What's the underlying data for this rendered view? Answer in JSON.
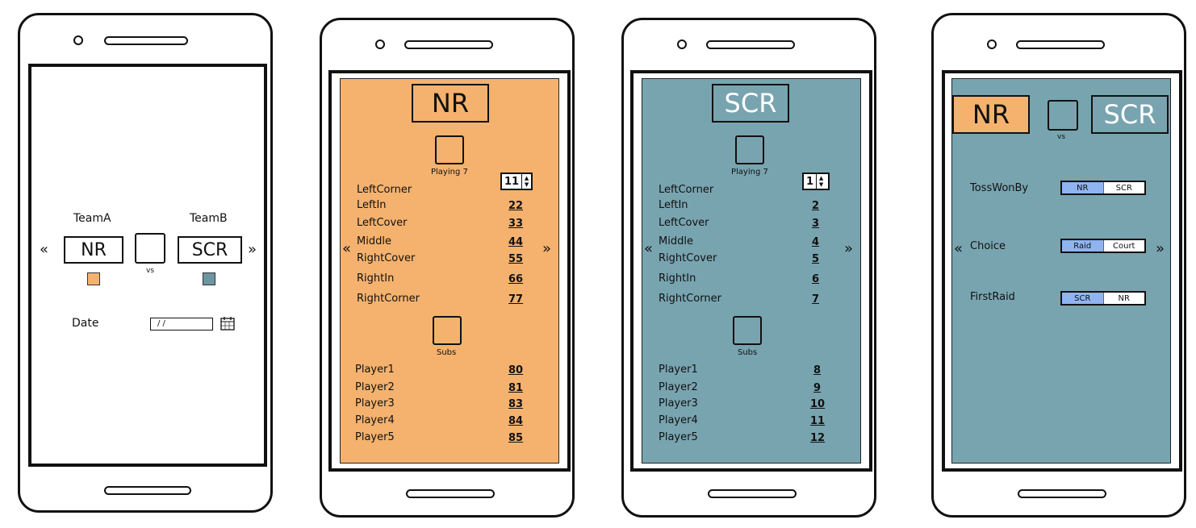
{
  "colors": {
    "nr_orange": "#f4b26e",
    "scr_teal": "#78a4b0",
    "toggle_blue": "#8fb4f0",
    "note_teal": "#6d96a3"
  },
  "screen1": {
    "team_a_label": "TeamA",
    "team_b_label": "TeamB",
    "team_a": "NR",
    "team_b": "SCR",
    "vs": "vs",
    "date_label": "Date",
    "date_value": "/ /",
    "prev": "«",
    "next": "»"
  },
  "screen2": {
    "team": "NR",
    "playing_label": "Playing 7",
    "stepper_value": "11",
    "positions": [
      {
        "name": "LeftCorner",
        "num": ""
      },
      {
        "name": "LeftIn",
        "num": "22"
      },
      {
        "name": "LeftCover",
        "num": "33"
      },
      {
        "name": "Middle",
        "num": "44"
      },
      {
        "name": "RightCover",
        "num": "55"
      },
      {
        "name": "RightIn",
        "num": "66"
      },
      {
        "name": "RightCorner",
        "num": "77"
      }
    ],
    "subs_label": "Subs",
    "subs": [
      {
        "name": "Player1",
        "num": "80"
      },
      {
        "name": "Player2",
        "num": "81"
      },
      {
        "name": "Player3",
        "num": "83"
      },
      {
        "name": "Player4",
        "num": "84"
      },
      {
        "name": "Player5",
        "num": "85"
      }
    ],
    "prev": "«",
    "next": "»"
  },
  "screen3": {
    "team": "SCR",
    "playing_label": "Playing 7",
    "stepper_value": "1",
    "positions": [
      {
        "name": "LeftCorner",
        "num": ""
      },
      {
        "name": "LeftIn",
        "num": "2"
      },
      {
        "name": "LeftCover",
        "num": "3"
      },
      {
        "name": "Middle",
        "num": "4"
      },
      {
        "name": "RightCover",
        "num": "5"
      },
      {
        "name": "RightIn",
        "num": "6"
      },
      {
        "name": "RightCorner",
        "num": "7"
      }
    ],
    "subs_label": "Subs",
    "subs": [
      {
        "name": "Player1",
        "num": "8"
      },
      {
        "name": "Player2",
        "num": "9"
      },
      {
        "name": "Player3",
        "num": "10"
      },
      {
        "name": "Player4",
        "num": "11"
      },
      {
        "name": "Player5",
        "num": "12"
      }
    ],
    "prev": "«",
    "next": "»"
  },
  "screen4": {
    "team_a": "NR",
    "team_b": "SCR",
    "vs": "vs",
    "toss_label": "TossWonBy",
    "toss_options": [
      "NR",
      "SCR"
    ],
    "choice_label": "Choice",
    "choice_options": [
      "Raid",
      "Court"
    ],
    "firstraid_label": "FirstRaid",
    "firstraid_options": [
      "SCR",
      "NR"
    ],
    "prev": "«",
    "next": "»"
  }
}
